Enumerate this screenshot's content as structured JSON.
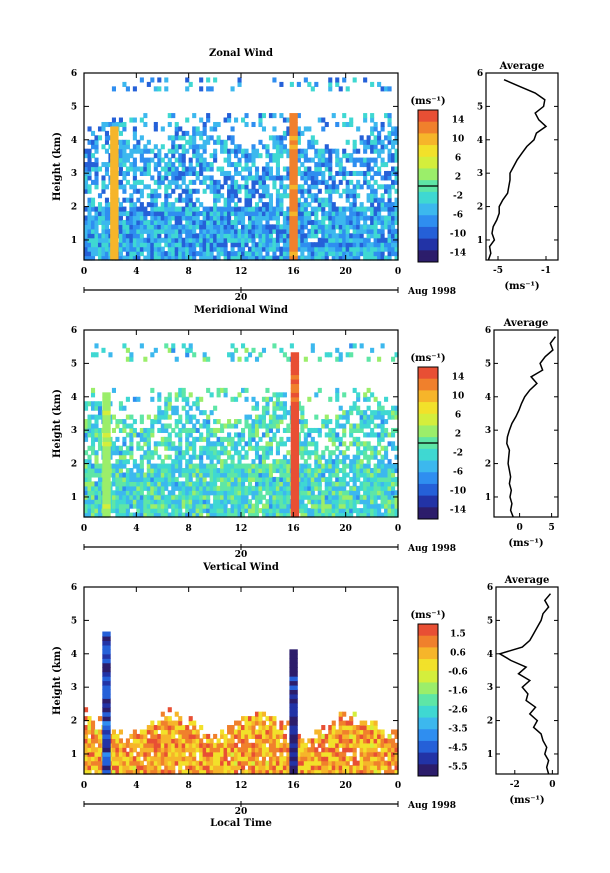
{
  "chart_data": [
    {
      "type": "heatmap",
      "title": "Zonal Wind",
      "xlabel": "",
      "ylabel": "Height (km)",
      "xlim": [
        0,
        24
      ],
      "ylim": [
        0.4,
        6
      ],
      "x_ticks": [
        "0",
        "4",
        "8",
        "12",
        "16",
        "20",
        "0"
      ],
      "y_ticks": [
        "1",
        "2",
        "3",
        "4",
        "5",
        "6"
      ],
      "date_marker": {
        "x": 12,
        "label": "20"
      },
      "date_label": "Aug 1998",
      "colorbar": {
        "unit": "(ms⁻¹)",
        "range": [
          -16,
          16
        ],
        "ticks": [
          "14",
          "10",
          "6",
          "2",
          "-2",
          "-6",
          "-10",
          "-14"
        ],
        "marked_level": 0
      },
      "field": {
        "low_layer_top_km": 4.1,
        "upper_patches_km": [
          4.5,
          5.6
        ],
        "typical_value": -6,
        "events": [
          {
            "time": 2.2,
            "top_km": 4.3,
            "value": 10
          },
          {
            "time": 15.9,
            "top_km": 4.8,
            "value": 12
          }
        ]
      },
      "average_profile": {
        "title": "Average",
        "xlabel": "(ms⁻¹)",
        "xlim": [
          -6,
          0
        ],
        "x_ticks": [
          "-5",
          "-1"
        ],
        "y_ticks": [
          "1",
          "2",
          "3",
          "4",
          "5",
          "6"
        ],
        "height_km": [
          0.4,
          0.6,
          0.8,
          1.0,
          1.2,
          1.4,
          1.6,
          1.8,
          2.0,
          2.2,
          2.4,
          2.6,
          2.8,
          3.0,
          3.2,
          3.4,
          3.6,
          3.8,
          4.0,
          4.2,
          4.4,
          4.6,
          4.8,
          5.0,
          5.2,
          5.4,
          5.6,
          5.8
        ],
        "value": [
          -5.8,
          -5.6,
          -5.7,
          -5.3,
          -5.5,
          -5.4,
          -5.1,
          -4.9,
          -4.9,
          -4.6,
          -4.2,
          -4.1,
          -4.0,
          -4.0,
          -3.7,
          -3.4,
          -3.0,
          -2.6,
          -2.0,
          -1.8,
          -1.0,
          -1.6,
          -1.9,
          -1.2,
          -1.1,
          -1.9,
          -3.2,
          -4.5
        ]
      }
    },
    {
      "type": "heatmap",
      "title": "Meridional Wind",
      "xlabel": "",
      "ylabel": "Height (km)",
      "xlim": [
        0,
        24
      ],
      "ylim": [
        0.4,
        6
      ],
      "x_ticks": [
        "0",
        "4",
        "8",
        "12",
        "16",
        "20",
        "0"
      ],
      "y_ticks": [
        "1",
        "2",
        "3",
        "4",
        "5",
        "6"
      ],
      "date_marker": {
        "x": 12,
        "label": "20"
      },
      "date_label": "Aug 1998",
      "colorbar": {
        "unit": "(ms⁻¹)",
        "range": [
          -16,
          16
        ],
        "ticks": [
          "14",
          "10",
          "6",
          "2",
          "-2",
          "-6",
          "-10",
          "-14"
        ],
        "marked_level": 0
      },
      "field": {
        "low_layer_top_km": 3.6,
        "upper_patches_km": [
          4.0,
          5.3
        ],
        "typical_value": -2,
        "events": [
          {
            "time": 1.6,
            "top_km": 4.0,
            "value": 3
          },
          {
            "time": 16.0,
            "top_km": 5.2,
            "value": 14
          }
        ]
      },
      "average_profile": {
        "title": "Average",
        "xlabel": "(ms⁻¹)",
        "xlim": [
          -4,
          6
        ],
        "x_ticks": [
          "0",
          "5"
        ],
        "y_ticks": [
          "1",
          "2",
          "3",
          "4",
          "5",
          "6"
        ],
        "height_km": [
          0.4,
          0.6,
          0.8,
          1.0,
          1.2,
          1.4,
          1.6,
          1.8,
          2.0,
          2.2,
          2.4,
          2.6,
          2.8,
          3.0,
          3.2,
          3.4,
          3.6,
          3.8,
          4.0,
          4.2,
          4.4,
          4.6,
          4.8,
          5.0,
          5.2,
          5.4,
          5.6,
          5.8
        ],
        "value": [
          -1.0,
          -1.4,
          -1.2,
          -1.5,
          -1.3,
          -1.6,
          -1.4,
          -1.6,
          -1.8,
          -1.7,
          -1.6,
          -2.0,
          -1.9,
          -1.6,
          -1.2,
          -0.6,
          -0.1,
          0.3,
          0.8,
          1.6,
          2.7,
          1.8,
          3.6,
          3.2,
          4.0,
          5.2,
          4.8,
          5.6
        ]
      }
    },
    {
      "type": "heatmap",
      "title": "Vertical Wind",
      "xlabel": "Local Time",
      "ylabel": "Height (km)",
      "xlim": [
        0,
        24
      ],
      "ylim": [
        0.4,
        6
      ],
      "x_ticks": [
        "0",
        "4",
        "8",
        "12",
        "16",
        "20",
        "0"
      ],
      "y_ticks": [
        "1",
        "2",
        "3",
        "4",
        "5",
        "6"
      ],
      "date_marker": {
        "x": 12,
        "label": "20"
      },
      "date_label": "Aug 1998",
      "colorbar": {
        "unit": "(ms⁻¹)",
        "range": [
          -6,
          2
        ],
        "ticks": [
          "1.5",
          "0.6",
          "-0.6",
          "-1.6",
          "-2.6",
          "-3.5",
          "-4.5",
          "-5.5"
        ],
        "marked_level": null
      },
      "field": {
        "low_layer_top_km": 1.8,
        "upper_patches_km": [],
        "typical_value": 0.6,
        "events": [
          {
            "time": 1.6,
            "top_km": 4.6,
            "value": -5.0
          },
          {
            "time": 15.9,
            "top_km": 4.0,
            "value": -5.5
          }
        ]
      },
      "average_profile": {
        "title": "Average",
        "xlabel": "(ms⁻¹)",
        "xlim": [
          -3,
          0.3
        ],
        "x_ticks": [
          "-2",
          "0"
        ],
        "y_ticks": [
          "1",
          "2",
          "3",
          "4",
          "5",
          "6"
        ],
        "height_km": [
          0.4,
          0.6,
          0.8,
          1.0,
          1.2,
          1.4,
          1.6,
          1.8,
          2.0,
          2.2,
          2.4,
          2.6,
          2.8,
          3.0,
          3.2,
          3.4,
          3.6,
          3.8,
          4.0,
          4.2,
          4.4,
          4.6,
          4.8,
          5.0,
          5.2,
          5.4,
          5.6,
          5.8
        ],
        "value": [
          -0.2,
          -0.3,
          -0.2,
          -0.4,
          -0.3,
          -0.5,
          -0.6,
          -1.0,
          -0.8,
          -1.2,
          -0.9,
          -1.4,
          -1.3,
          -1.6,
          -1.2,
          -1.8,
          -1.4,
          -2.2,
          -2.8,
          -1.6,
          -1.2,
          -1.0,
          -0.8,
          -0.6,
          -0.5,
          -0.2,
          -0.4,
          -0.1
        ]
      }
    }
  ]
}
